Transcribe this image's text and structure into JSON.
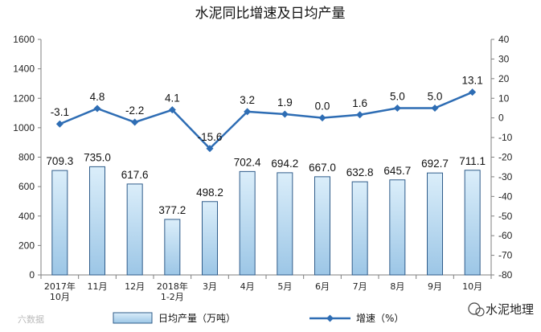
{
  "chart_data": {
    "type": "bar+line",
    "title": "水泥同比增速及日均产量",
    "categories": [
      "2017年\n10月",
      "11月",
      "12月",
      "2018年\n1-2月",
      "3月",
      "4月",
      "5月",
      "6月",
      "7月",
      "8月",
      "9月",
      "10月"
    ],
    "series": [
      {
        "name": "日均产量（万吨）",
        "type": "bar",
        "axis": "left",
        "values": [
          709.3,
          735.0,
          617.6,
          377.2,
          498.2,
          702.4,
          694.2,
          667.0,
          632.8,
          645.7,
          692.7,
          711.1
        ],
        "labels": [
          "709.3",
          "735.0",
          "617.6",
          "377.2",
          "498.2",
          "702.4",
          "694.2",
          "667.0",
          "632.8",
          "645.7",
          "692.7",
          "711.1"
        ]
      },
      {
        "name": "增速（%）",
        "type": "line",
        "axis": "right",
        "values": [
          -3.1,
          4.8,
          -2.2,
          4.1,
          -15.6,
          3.2,
          1.9,
          0.0,
          1.6,
          5.0,
          5.0,
          13.1
        ],
        "labels": [
          "-3.1",
          "4.8",
          "-2.2",
          "4.1",
          "-15.6",
          "3.2",
          "1.9",
          "0.0",
          "1.6",
          "5.0",
          "5.0",
          "13.1"
        ]
      }
    ],
    "y_left": {
      "lim": [
        0,
        1600
      ],
      "ticks": [
        "0",
        "200",
        "400",
        "600",
        "800",
        "1000",
        "1200",
        "1400",
        "1600"
      ]
    },
    "y_right": {
      "lim": [
        -80,
        40
      ],
      "ticks": [
        "-80",
        "-70",
        "-60",
        "-50",
        "-40",
        "-30",
        "-20",
        "-10",
        "0",
        "10",
        "20",
        "30",
        "40"
      ]
    },
    "grid": false,
    "legend_position": "bottom",
    "colors": {
      "bar_fill_top": "#dbeefa",
      "bar_fill_bottom": "#9cc6e6",
      "bar_stroke": "#2f5c8a",
      "line": "#2e6db4",
      "axis": "#7f7f7f"
    }
  },
  "watermark": {
    "brand": "水泥地理",
    "left_text": "六数据"
  }
}
